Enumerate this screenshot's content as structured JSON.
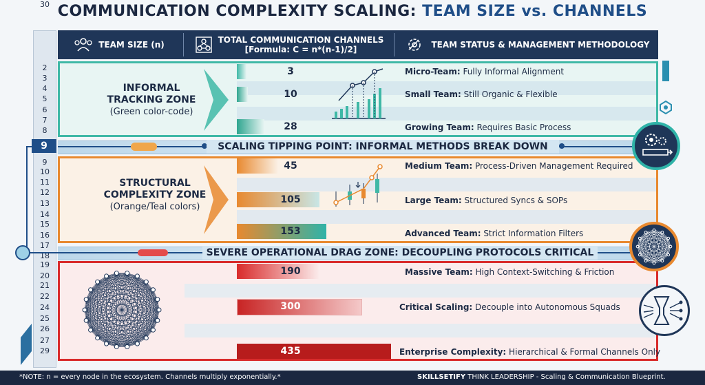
{
  "title": {
    "main": "COMMUNICATION COMPLEXITY SCALING:",
    "highlight": "TEAM SIZE vs. CHANNELS"
  },
  "header": {
    "col1": "TEAM SIZE (n)",
    "col2_line1": "TOTAL COMMUNICATION CHANNELS",
    "col2_line2": "[Formula: C = n*(n-1)/2]",
    "col3": "TEAM STATUS & MANAGEMENT METHODOLOGY"
  },
  "row_numbers": [
    "2",
    "3",
    "4",
    "5",
    "6",
    "7",
    "8",
    "9",
    "10",
    "11",
    "12",
    "13",
    "14",
    "15",
    "16",
    "17",
    "18",
    "19",
    "20",
    "21",
    "22",
    "24",
    "25",
    "26",
    "27",
    "29",
    "30"
  ],
  "zones": {
    "informal": {
      "line1": "INFORMAL",
      "line2": "TRACKING ZONE",
      "sub": "(Green color-code)",
      "color": "#3fb8a6"
    },
    "structural": {
      "line1": "STRUCTURAL",
      "line2": "COMPLEXITY ZONE",
      "sub": "(Orange/Teal colors)",
      "color": "#e8892f"
    },
    "severe": {
      "color": "#d92b2b"
    }
  },
  "rows": [
    {
      "value": "3",
      "label": "Micro-Team:",
      "desc": " Fully Informal Alignment"
    },
    {
      "value": "10",
      "label": "Small Team:",
      "desc": " Still Organic & Flexible"
    },
    {
      "value": "28",
      "label": "Growing Team:",
      "desc": " Requires Basic Process"
    },
    {
      "value": "45",
      "label": "Medium Team:",
      "desc": " Process-Driven Management Required"
    },
    {
      "value": "105",
      "label": "Large Team:",
      "desc": " Structured Syncs & SOPs"
    },
    {
      "value": "153",
      "label": "Advanced Team:",
      "desc": " Strict Information Filters"
    },
    {
      "value": "190",
      "label": "Massive Team:",
      "desc": " High Context-Switching & Friction"
    },
    {
      "value": "300",
      "label": "Critical Scaling:",
      "desc": " Decouple into Autonomous Squads"
    },
    {
      "value": "435",
      "label": "Enterprise Complexity:",
      "desc": " Hierarchical & Formal Channels Only"
    }
  ],
  "tipping_points": {
    "first": {
      "row": "9",
      "text": "SCALING TIPPING POINT: INFORMAL METHODS BREAK DOWN"
    },
    "second": {
      "row_a": "18",
      "row_b": "19",
      "text": "SEVERE OPERATIONAL DRAG ZONE: DECOUPLING PROTOCOLS CRITICAL"
    }
  },
  "icons": {
    "team": "team-icon",
    "network": "network-icon",
    "gear": "gear-icon",
    "mesh": "mesh-network-icon",
    "funnel": "funnel-network-icon"
  },
  "footer": {
    "note": "*NOTE: n = every node in the ecosystem. Channels multiply exponentially.*",
    "brand": "SKILLSETIFY",
    "brand_tail": " THINK LEADERSHIP - Scaling & Communication Blueprint."
  }
}
